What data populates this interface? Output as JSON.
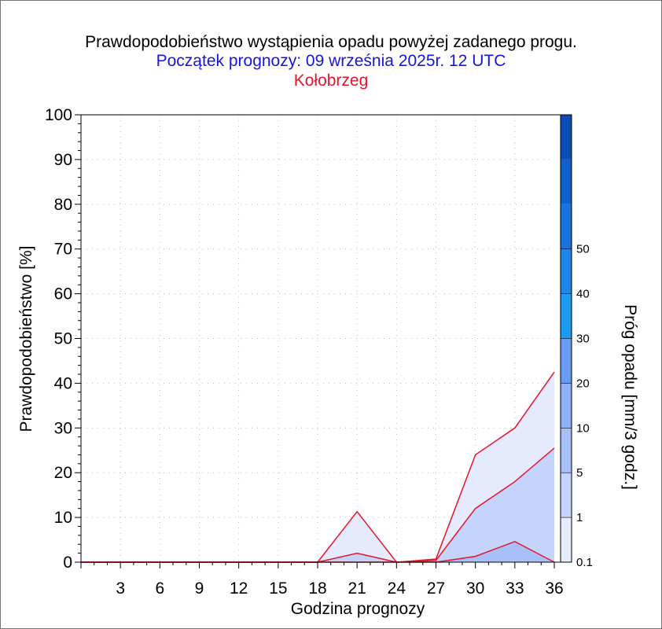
{
  "titles": {
    "line1": "Prawdopodobieństwo wystąpienia opadu powyżej zadanego progu.",
    "line2": "Początek prognozy: 09 września 2025r. 12 UTC",
    "line3": "Kołobrzeg"
  },
  "colors": {
    "line2": "#1515e0",
    "line3": "#e8142a",
    "series_line": "#e8142a"
  },
  "chart_data": {
    "type": "area",
    "title": "Prawdopodobieństwo wystąpienia opadu powyżej zadanego progu.",
    "xlabel": "Godzina prognozy",
    "ylabel": "Prawdopodobieństwo [%]",
    "xlim": [
      0,
      36
    ],
    "ylim": [
      0,
      100
    ],
    "x": [
      0,
      3,
      6,
      9,
      12,
      15,
      18,
      21,
      24,
      27,
      30,
      33,
      36
    ],
    "x_tick_labels": [
      "3",
      "6",
      "9",
      "12",
      "15",
      "18",
      "21",
      "24",
      "27",
      "30",
      "33",
      "36"
    ],
    "y_tick_labels": [
      "0",
      "10",
      "20",
      "30",
      "40",
      "50",
      "60",
      "70",
      "80",
      "90",
      "100"
    ],
    "grid": true,
    "series": [
      {
        "name": "0.1",
        "color": "#e5eafc",
        "values": [
          0,
          0,
          0,
          0,
          0,
          0,
          0,
          11.3,
          0,
          0.7,
          24.0,
          30.0,
          42.5
        ]
      },
      {
        "name": "1",
        "color": "#c4d4fb",
        "values": [
          0,
          0,
          0,
          0,
          0,
          0,
          0,
          2.0,
          0,
          0.4,
          12.0,
          18.0,
          25.5
        ]
      },
      {
        "name": "5",
        "color": "#a7c0f8",
        "values": [
          0,
          0,
          0,
          0,
          0,
          0,
          0,
          0,
          0,
          0,
          1.3,
          4.6,
          0
        ]
      }
    ],
    "colorbar": {
      "label": "Próg opadu [mm/3 godz.]",
      "tick_labels": [
        "0.1",
        "1",
        "5",
        "10",
        "20",
        "30",
        "40",
        "50"
      ],
      "segment_colors": [
        "#e5eafc",
        "#c4d4fb",
        "#a7c0f8",
        "#8eb0f7",
        "#6a9bf3",
        "#1c9cf0",
        "#1e86e8",
        "#1772dc",
        "#1060cc",
        "#0a4eb5"
      ]
    }
  }
}
